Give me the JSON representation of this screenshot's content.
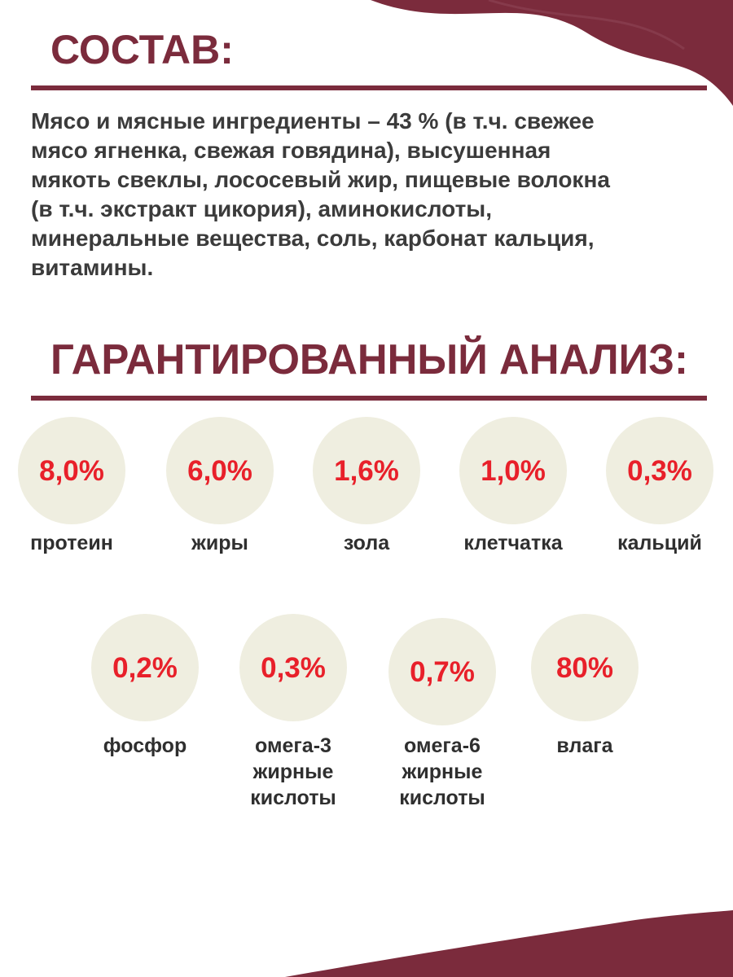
{
  "composition": {
    "title": "СОСТАВ:",
    "lines": [
      "Мясо и мясные ингредиенты – 43 % (в т.ч. свежее",
      "мясо ягненка, свежая говядина), высушенная",
      "мякоть свеклы, лососевый жир, пищевые волокна",
      "(в т.ч. экстракт цикория), аминокислоты,",
      "минеральные вещества, соль, карбонат кальция,",
      "витамины."
    ]
  },
  "analysis": {
    "title": "ГАРАНТИРОВАННЫЙ АНАЛИЗ:",
    "items": [
      {
        "value": "8,0%",
        "label": [
          "протеин"
        ]
      },
      {
        "value": "6,0%",
        "label": [
          "жиры"
        ]
      },
      {
        "value": "1,6%",
        "label": [
          "зола"
        ]
      },
      {
        "value": "1,0%",
        "label": [
          "клетчатка"
        ]
      },
      {
        "value": "0,3%",
        "label": [
          "кальций"
        ]
      },
      {
        "value": "0,2%",
        "label": [
          "фосфор"
        ]
      },
      {
        "value": "0,3%",
        "label": [
          "омега-3",
          "жирные",
          "кислоты"
        ]
      },
      {
        "value": "0,7%",
        "label": [
          "омега-6",
          "жирные",
          "кислоты"
        ]
      },
      {
        "value": "80%",
        "label": [
          "влага"
        ]
      }
    ]
  }
}
